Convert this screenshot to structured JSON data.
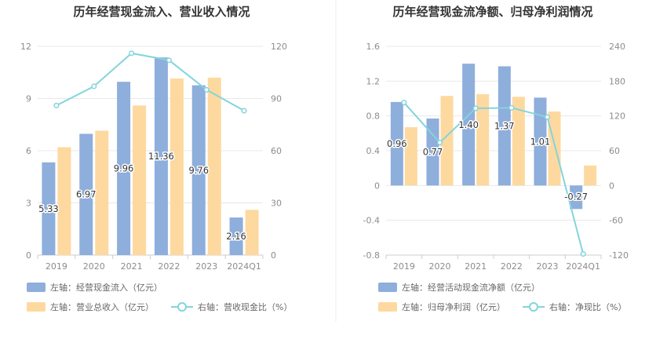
{
  "charts": [
    {
      "title": "历年经营现金流入、营业收入情况",
      "legend": {
        "bar1": "左轴：经营现金流入（亿元）",
        "bar2": "左轴：营业总收入（亿元）",
        "line": "右轴：营收现金比（%）"
      }
    },
    {
      "title": "历年经营现金流净额、归母净利润情况",
      "legend": {
        "bar1": "左轴：经营活动现金流净额（亿元）",
        "bar2": "左轴：归母净利润（亿元）",
        "line": "右轴：净现比（%）"
      }
    }
  ],
  "colors": {
    "bar1": "#8eaedc",
    "bar2": "#fdd9a0",
    "line": "#84d4dc",
    "grid": "#e8e8e8",
    "divider": "#eeeeee"
  },
  "chart_data": [
    {
      "type": "bar",
      "title": "历年经营现金流入、营业收入情况",
      "categories": [
        "2019",
        "2020",
        "2021",
        "2022",
        "2023",
        "2024Q1"
      ],
      "series": [
        {
          "name": "左轴：经营现金流入（亿元）",
          "axis": "left",
          "type": "bar",
          "values": [
            5.33,
            6.97,
            9.96,
            11.36,
            9.76,
            2.16
          ],
          "labels": [
            "5.33",
            "6.97",
            "9.96",
            "11.36",
            "9.76",
            "2.16"
          ]
        },
        {
          "name": "左轴：营业总收入（亿元）",
          "axis": "left",
          "type": "bar",
          "values": [
            6.2,
            7.15,
            8.6,
            10.15,
            10.2,
            2.6
          ]
        },
        {
          "name": "右轴：营收现金比（%）",
          "axis": "right",
          "type": "line",
          "values": [
            86,
            97,
            116,
            112,
            95,
            83
          ]
        }
      ],
      "left_axis": {
        "min": 0,
        "max": 12,
        "ticks": [
          "0",
          "3",
          "6",
          "9",
          "12"
        ]
      },
      "right_axis": {
        "min": 0,
        "max": 120,
        "ticks": [
          "0",
          "30",
          "60",
          "90",
          "120"
        ]
      },
      "grid": true,
      "legend_position": "bottom"
    },
    {
      "type": "bar",
      "title": "历年经营现金流净额、归母净利润情况",
      "categories": [
        "2019",
        "2020",
        "2021",
        "2022",
        "2023",
        "2024Q1"
      ],
      "series": [
        {
          "name": "左轴：经营活动现金流净额（亿元）",
          "axis": "left",
          "type": "bar",
          "values": [
            0.96,
            0.77,
            1.4,
            1.37,
            1.01,
            -0.27
          ],
          "labels": [
            "0.96",
            "0.77",
            "1.40",
            "1.37",
            "1.01",
            "-0.27"
          ]
        },
        {
          "name": "左轴：归母净利润（亿元）",
          "axis": "left",
          "type": "bar",
          "values": [
            0.67,
            1.03,
            1.05,
            1.02,
            0.85,
            0.23
          ]
        },
        {
          "name": "右轴：净现比（%）",
          "axis": "right",
          "type": "line",
          "values": [
            143,
            74,
            133,
            134,
            118,
            -118
          ]
        }
      ],
      "left_axis": {
        "min": -0.8,
        "max": 1.6,
        "ticks": [
          "-0.8",
          "-0.4",
          "0",
          "0.4",
          "0.8",
          "1.2",
          "1.6"
        ]
      },
      "right_axis": {
        "min": -120,
        "max": 240,
        "ticks": [
          "-120",
          "-60",
          "0",
          "60",
          "120",
          "180",
          "240"
        ]
      },
      "grid": true,
      "legend_position": "bottom"
    }
  ]
}
